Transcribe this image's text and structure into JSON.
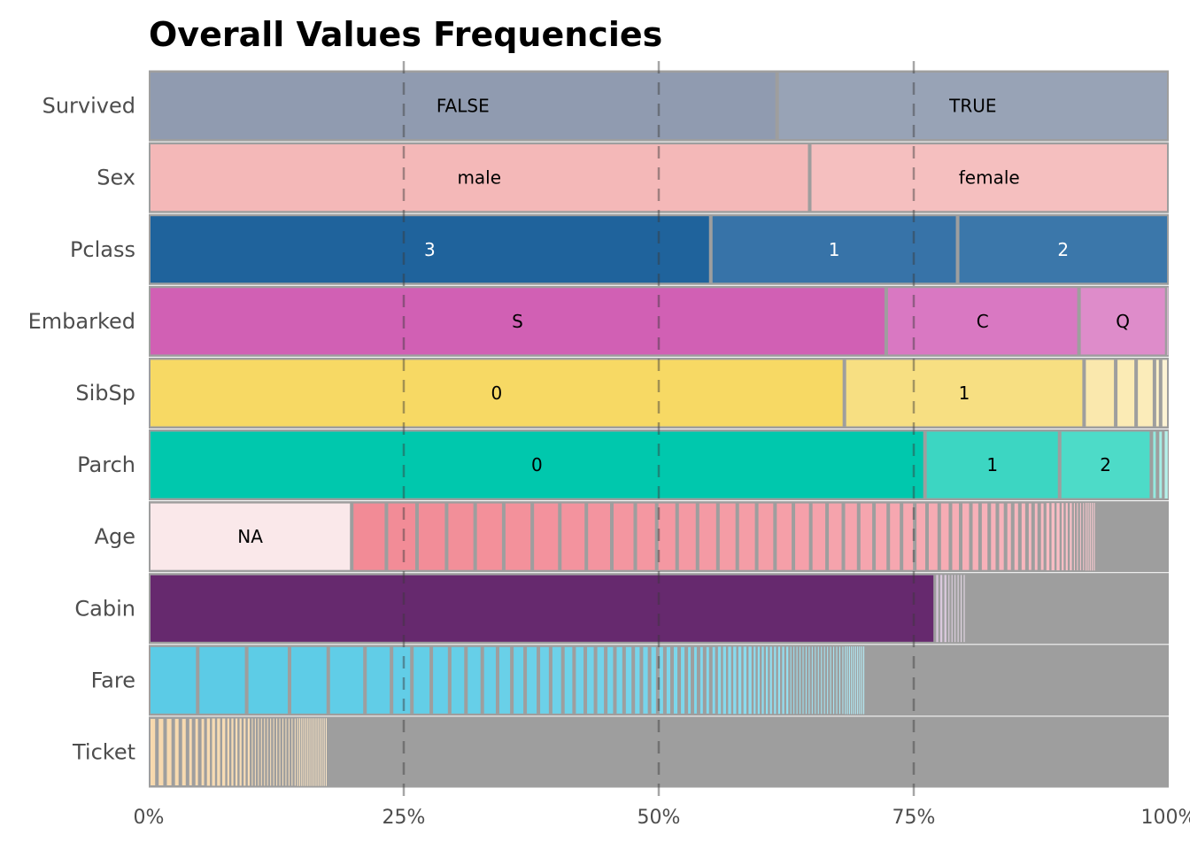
{
  "chart_data": {
    "type": "bar",
    "subtype": "stacked-horizontal-100-percent",
    "title": "Overall Values Frequencies",
    "xlabel": "",
    "ylabel": "",
    "xlim": [
      0,
      100
    ],
    "x_ticks": [
      "0%",
      "25%",
      "50%",
      "75%",
      "100%"
    ],
    "x_tick_values": [
      0,
      25,
      50,
      75,
      100
    ],
    "reference_lines": [
      25,
      50,
      75
    ],
    "grid": false,
    "legend": "none",
    "other_color": "#9e9e9e",
    "border_color": "#9e9e9e",
    "categories": [
      "Survived",
      "Sex",
      "Pclass",
      "Embarked",
      "SibSp",
      "Parch",
      "Age",
      "Cabin",
      "Fare",
      "Ticket"
    ],
    "rows": [
      {
        "name": "Survived",
        "segments": [
          {
            "label": "FALSE",
            "value": 61.6,
            "color": "#909bb0",
            "text_color": "#000000"
          },
          {
            "label": "TRUE",
            "value": 38.4,
            "color": "#98a3b6",
            "text_color": "#000000"
          }
        ]
      },
      {
        "name": "Sex",
        "segments": [
          {
            "label": "male",
            "value": 64.8,
            "color": "#f4b8b8",
            "text_color": "#000000"
          },
          {
            "label": "female",
            "value": 35.2,
            "color": "#f5bfbf",
            "text_color": "#000000"
          }
        ]
      },
      {
        "name": "Pclass",
        "segments": [
          {
            "label": "3",
            "value": 55.1,
            "color": "#1f639c",
            "text_color": "#ffffff"
          },
          {
            "label": "1",
            "value": 24.2,
            "color": "#3773a8",
            "text_color": "#ffffff"
          },
          {
            "label": "2",
            "value": 20.7,
            "color": "#3b77aa",
            "text_color": "#ffffff"
          }
        ]
      },
      {
        "name": "Embarked",
        "segments": [
          {
            "label": "S",
            "value": 72.3,
            "color": "#d160b4",
            "text_color": "#000000"
          },
          {
            "label": "C",
            "value": 18.9,
            "color": "#d978c2",
            "text_color": "#000000"
          },
          {
            "label": "Q",
            "value": 8.6,
            "color": "#de8cca",
            "text_color": "#000000"
          },
          {
            "label": "",
            "value": 0.2,
            "color": "#ecc2e3",
            "text_color": "#000000"
          }
        ]
      },
      {
        "name": "SibSp",
        "segments": [
          {
            "label": "0",
            "value": 68.2,
            "color": "#f7d964",
            "text_color": "#000000"
          },
          {
            "label": "1",
            "value": 23.5,
            "color": "#f7df82",
            "text_color": "#000000"
          },
          {
            "label": "",
            "value": 3.1,
            "color": "#fae8ad",
            "text_color": "#000000"
          },
          {
            "label": "",
            "value": 2.0,
            "color": "#fbebb5",
            "text_color": "#000000"
          },
          {
            "label": "",
            "value": 1.8,
            "color": "#fbecba",
            "text_color": "#000000"
          },
          {
            "label": "",
            "value": 0.6,
            "color": "#fcf0c8",
            "text_color": "#000000"
          },
          {
            "label": "",
            "value": 0.8,
            "color": "#fdf3d4",
            "text_color": "#000000"
          }
        ]
      },
      {
        "name": "Parch",
        "segments": [
          {
            "label": "0",
            "value": 76.1,
            "color": "#00c8ad",
            "text_color": "#000000"
          },
          {
            "label": "1",
            "value": 13.2,
            "color": "#3cd6c2",
            "text_color": "#000000"
          },
          {
            "label": "2",
            "value": 9.0,
            "color": "#4ddbc8",
            "text_color": "#000000"
          },
          {
            "label": "",
            "value": 0.6,
            "color": "#95eadf",
            "text_color": "#000000"
          },
          {
            "label": "",
            "value": 0.6,
            "color": "#a6eee5",
            "text_color": "#000000"
          },
          {
            "label": "",
            "value": 0.5,
            "color": "#b6f1ea",
            "text_color": "#000000"
          }
        ]
      },
      {
        "name": "Age",
        "segments_head": [
          {
            "label": "NA",
            "value": 19.9,
            "color": "#fae8ea",
            "text_color": "#000000"
          }
        ],
        "tail_values": [
          3.4,
          3.0,
          2.9,
          2.8,
          2.8,
          2.8,
          2.7,
          2.6,
          2.5,
          2.3,
          2.1,
          2.0,
          2.0,
          2.0,
          1.9,
          1.9,
          1.8,
          1.8,
          1.7,
          1.6,
          1.6,
          1.5,
          1.5,
          1.4,
          1.3,
          1.3,
          1.2,
          1.2,
          1.1,
          1.0,
          1.0,
          0.9,
          0.9,
          0.8,
          0.8,
          0.7,
          0.7,
          0.7,
          0.6,
          0.6,
          0.6,
          0.5,
          0.5,
          0.5,
          0.4,
          0.4,
          0.4,
          0.3,
          0.3,
          0.3,
          0.3,
          0.2,
          0.2,
          0.2,
          0.2,
          0.2,
          0.1,
          0.1,
          0.1,
          0.1
        ],
        "tail_color_start": "#f28b96",
        "tail_color_end": "#fbd1d6"
      },
      {
        "name": "Cabin",
        "segments_head": [
          {
            "label": "",
            "value": 77.1,
            "color": "#66296e",
            "text_color": "#ffffff"
          }
        ],
        "tail_values": [
          0.4,
          0.4,
          0.4,
          0.3,
          0.3,
          0.3,
          0.3,
          0.3,
          0.3
        ],
        "tail_color_start": "#d9c6dc",
        "tail_color_end": "#e8dbe9"
      },
      {
        "name": "Fare",
        "segments_head": [],
        "tail_values": [
          4.8,
          4.8,
          4.2,
          3.8,
          3.6,
          2.6,
          2.0,
          1.9,
          1.8,
          1.6,
          1.6,
          1.5,
          1.4,
          1.3,
          1.3,
          1.2,
          1.2,
          1.1,
          1.1,
          1.0,
          1.0,
          0.9,
          0.9,
          0.9,
          0.8,
          0.8,
          0.8,
          0.7,
          0.7,
          0.7,
          0.7,
          0.6,
          0.6,
          0.6,
          0.6,
          0.6,
          0.5,
          0.5,
          0.5,
          0.5,
          0.5,
          0.5,
          0.5,
          0.4,
          0.4,
          0.4,
          0.4,
          0.4,
          0.4,
          0.4,
          0.4,
          0.4,
          0.3,
          0.3,
          0.3,
          0.3,
          0.3,
          0.3,
          0.3,
          0.3,
          0.3,
          0.3,
          0.3,
          0.3,
          0.3,
          0.3,
          0.3,
          0.3,
          0.3,
          0.3,
          0.2,
          0.2,
          0.2,
          0.2,
          0.2,
          0.2,
          0.2,
          0.2,
          0.2,
          0.2
        ],
        "tail_color_start": "#5bcbe6",
        "tail_color_end": "#b5ebf6"
      },
      {
        "name": "Ticket",
        "segments_head": [],
        "tail_values": [
          0.8,
          0.8,
          0.8,
          0.7,
          0.7,
          0.6,
          0.6,
          0.6,
          0.5,
          0.5,
          0.5,
          0.5,
          0.4,
          0.4,
          0.4,
          0.4,
          0.4,
          0.4,
          0.3,
          0.3,
          0.3,
          0.3,
          0.3,
          0.3,
          0.3,
          0.3,
          0.3,
          0.3,
          0.3,
          0.3,
          0.3,
          0.3,
          0.3,
          0.2,
          0.2,
          0.2,
          0.2,
          0.2,
          0.2,
          0.2,
          0.2,
          0.2,
          0.2,
          0.2,
          0.2,
          0.2,
          0.2,
          0.2
        ],
        "tail_color_start": "#f7d9ae",
        "tail_color_end": "#f9e4c6"
      }
    ]
  }
}
